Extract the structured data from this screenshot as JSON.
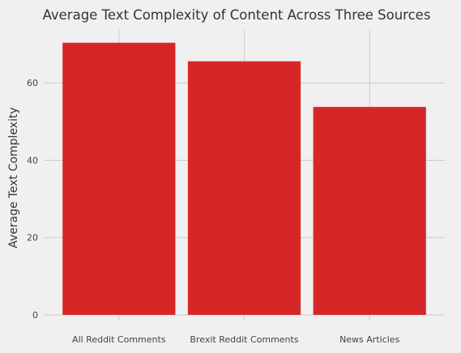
{
  "chart_data": {
    "type": "bar",
    "title": "Average Text Complexity of Content Across Three Sources",
    "xlabel": "",
    "ylabel": "Average Text Complexity",
    "categories": [
      "All Reddit Comments",
      "Brexit Reddit Comments",
      "News Articles"
    ],
    "values": [
      70.4,
      65.6,
      53.8
    ],
    "ylim": [
      0,
      73.9
    ],
    "yticks": [
      0,
      20,
      40,
      60
    ],
    "grid": true,
    "legend": "none",
    "colors": {
      "bar": "#d62728",
      "background": "#f0f0f0",
      "grid": "#cbcbcb",
      "text": "#333333"
    }
  }
}
